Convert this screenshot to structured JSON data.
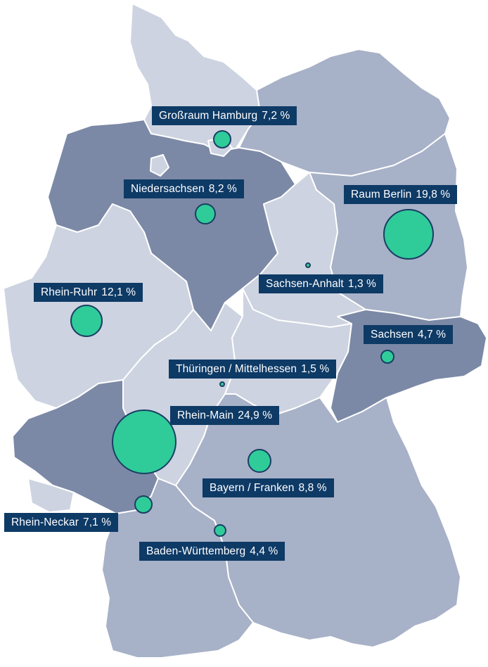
{
  "map": {
    "country": "Deutschland",
    "colors": {
      "light": "#cdd3e0",
      "medium": "#a7b1c7",
      "dark": "#7b89a6",
      "bubble": "#2fcc9a",
      "bubble_border": "#1a3e63",
      "label_bg": "#0e3a66",
      "label_text": "#ffffff"
    },
    "regions": [
      {
        "name": "Großraum Hamburg",
        "value": "7,2 %",
        "share": 7.2
      },
      {
        "name": "Niedersachsen",
        "value": "8,2 %",
        "share": 8.2
      },
      {
        "name": "Raum Berlin",
        "value": "19,8 %",
        "share": 19.8
      },
      {
        "name": "Sachsen-Anhalt",
        "value": "1,3 %",
        "share": 1.3
      },
      {
        "name": "Rhein-Ruhr",
        "value": "12,1 %",
        "share": 12.1
      },
      {
        "name": "Sachsen",
        "value": "4,7 %",
        "share": 4.7
      },
      {
        "name": "Thüringen / Mittelhessen",
        "value": "1,5 %",
        "share": 1.5
      },
      {
        "name": "Rhein-Main",
        "value": "24,9 %",
        "share": 24.9
      },
      {
        "name": "Bayern / Franken",
        "value": "8,8 %",
        "share": 8.8
      },
      {
        "name": "Rhein-Neckar",
        "value": "7,1 %",
        "share": 7.1
      },
      {
        "name": "Baden-Württemberg",
        "value": "4,4 %",
        "share": 4.4
      }
    ]
  }
}
